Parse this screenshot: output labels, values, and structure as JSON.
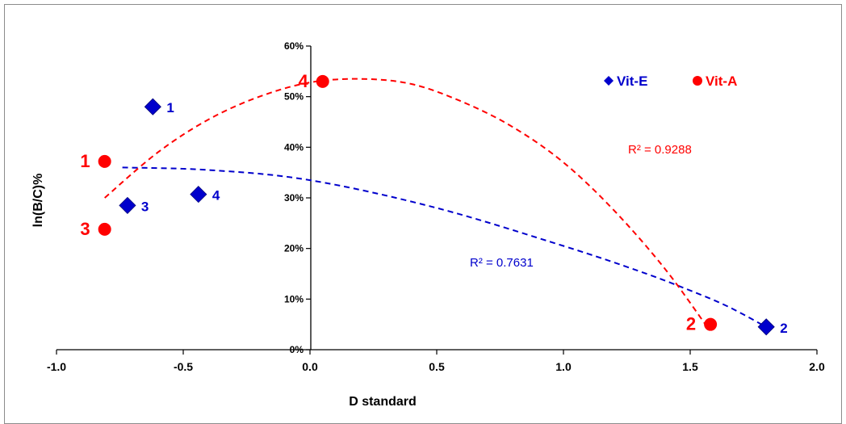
{
  "chart_data": {
    "type": "scatter",
    "xlabel": "D standard",
    "ylabel": "ln(B/C)%",
    "xlim": [
      -1.0,
      2.0
    ],
    "ylim": [
      0,
      0.6
    ],
    "x_ticks": [
      "-1.0",
      "-0.5",
      "0.0",
      "0.5",
      "1.0",
      "1.5",
      "2.0"
    ],
    "y_ticks": [
      "0%",
      "10%",
      "20%",
      "30%",
      "40%",
      "50%",
      "60%"
    ],
    "legend_position": "top-right",
    "series": [
      {
        "name": "Vit-E",
        "color": "#0000CC",
        "marker": "diamond",
        "points": [
          {
            "x": -0.62,
            "y": 0.48,
            "label": "1"
          },
          {
            "x": 1.8,
            "y": 0.045,
            "label": "2"
          },
          {
            "x": -0.72,
            "y": 0.285,
            "label": "3"
          },
          {
            "x": -0.44,
            "y": 0.307,
            "label": "4"
          }
        ],
        "trendline": {
          "type": "polynomial",
          "x_range": [
            -0.74,
            1.8
          ],
          "points": [
            [
              -0.74,
              0.36
            ],
            [
              -0.4,
              0.355
            ],
            [
              0.0,
              0.335
            ],
            [
              0.5,
              0.28
            ],
            [
              1.0,
              0.205
            ],
            [
              1.3,
              0.155
            ],
            [
              1.5,
              0.117
            ],
            [
              1.65,
              0.085
            ],
            [
              1.8,
              0.045
            ]
          ],
          "r2_label": "R² = 0.7631"
        }
      },
      {
        "name": "Vit-A",
        "color": "#FF0000",
        "marker": "circle",
        "points": [
          {
            "x": -0.81,
            "y": 0.372,
            "label": "1"
          },
          {
            "x": 1.58,
            "y": 0.05,
            "label": "2"
          },
          {
            "x": -0.81,
            "y": 0.238,
            "label": "3"
          },
          {
            "x": 0.05,
            "y": 0.53,
            "label": "4"
          }
        ],
        "trendline": {
          "type": "polynomial",
          "x_range": [
            -0.81,
            1.56
          ],
          "points": [
            [
              -0.81,
              0.3
            ],
            [
              -0.6,
              0.39
            ],
            [
              -0.4,
              0.455
            ],
            [
              -0.2,
              0.5
            ],
            [
              0.0,
              0.528
            ],
            [
              0.2,
              0.535
            ],
            [
              0.4,
              0.525
            ],
            [
              0.6,
              0.49
            ],
            [
              0.8,
              0.44
            ],
            [
              1.0,
              0.37
            ],
            [
              1.2,
              0.275
            ],
            [
              1.4,
              0.16
            ],
            [
              1.56,
              0.05
            ]
          ],
          "r2_label": "R² = 0.9288"
        }
      }
    ]
  }
}
